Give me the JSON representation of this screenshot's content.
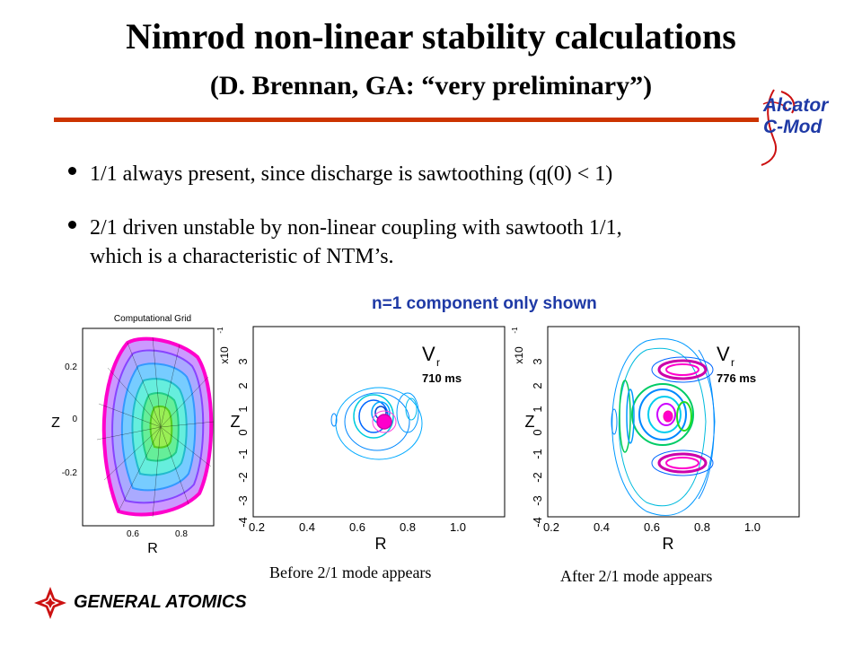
{
  "title": "Nimrod non-linear stability calculations",
  "subtitle": "(D. Brennan, GA: “very preliminary”)",
  "logo_right": {
    "line1": "Alcator",
    "line2": "C-Mod"
  },
  "bullets": [
    "1/1 always present, since discharge is sawtoothing (q(0) < 1)",
    "2/1 driven unstable by non-linear coupling with sawtooth 1/1,",
    "which is a characteristic of NTM’s."
  ],
  "caption": "n=1 component only shown",
  "grid_plot": {
    "title": "Computational Grid",
    "ylabel": "Z",
    "xlabel": "R",
    "yticks": [
      "0.2",
      "0",
      "-0.2"
    ],
    "xticks": [
      "0.6",
      "0.8"
    ]
  },
  "plot_before": {
    "quantity": "V",
    "quantity_sub": "r",
    "time": "710 ms",
    "ylabel": "Z",
    "yscale": "x10",
    "yscale_exp": "-1",
    "yticks": [
      "3",
      "2",
      "1",
      "0",
      "-1",
      "-2",
      "-3",
      "-4"
    ],
    "xticks": [
      "0.2",
      "0.4",
      "0.6",
      "0.8",
      "1.0"
    ],
    "xlabel": "R",
    "label": "Before 2/1 mode appears"
  },
  "plot_after": {
    "quantity": "V",
    "quantity_sub": "r",
    "time": "776 ms",
    "ylabel": "Z",
    "yscale": "x10",
    "yscale_exp": "-1",
    "yticks": [
      "3",
      "2",
      "1",
      "0",
      "-1",
      "-2",
      "-3",
      "-4"
    ],
    "xticks": [
      "0.2",
      "0.4",
      "0.6",
      "0.8",
      "1.0"
    ],
    "xlabel": "R",
    "label": "After 2/1 mode appears"
  },
  "logo_left": {
    "text": "GENERAL ATOMICS"
  },
  "colors": {
    "rule": "#cc3300",
    "caption": "#1f3aa6",
    "logo_red": "#cc1111"
  }
}
